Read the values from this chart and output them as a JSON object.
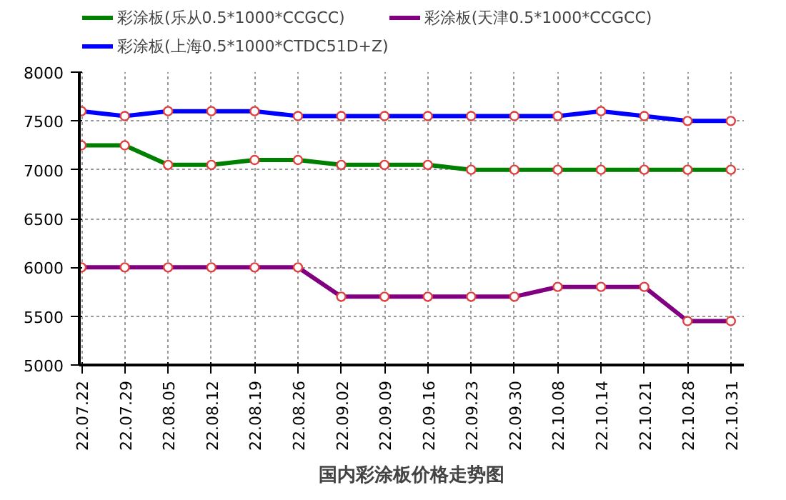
{
  "chart_data": {
    "type": "line",
    "title": "国内彩涂板价格走势图",
    "categories": [
      "22.07.22",
      "22.07.29",
      "22.08.05",
      "22.08.12",
      "22.08.19",
      "22.08.26",
      "22.09.02",
      "22.09.09",
      "22.09.16",
      "22.09.23",
      "22.09.30",
      "22.10.08",
      "22.10.14",
      "22.10.21",
      "22.10.28",
      "22.10.31"
    ],
    "series": [
      {
        "name": "彩涂板(乐从0.5*1000*CCGCC)",
        "color": "#008000",
        "values": [
          7250,
          7250,
          7050,
          7050,
          7100,
          7100,
          7050,
          7050,
          7050,
          7000,
          7000,
          7000,
          7000,
          7000,
          7000,
          7000
        ]
      },
      {
        "name": "彩涂板(上海0.5*1000*CTDC51D+Z)",
        "color": "#0000ff",
        "values": [
          7600,
          7550,
          7600,
          7600,
          7600,
          7550,
          7550,
          7550,
          7550,
          7550,
          7550,
          7550,
          7600,
          7550,
          7500,
          7500
        ]
      },
      {
        "name": "彩涂板(天津0.5*1000*CCGCC)",
        "color": "#800080",
        "values": [
          6000,
          6000,
          6000,
          6000,
          6000,
          6000,
          5700,
          5700,
          5700,
          5700,
          5700,
          5800,
          5800,
          5800,
          5450,
          5450
        ]
      }
    ],
    "ylim": [
      5000,
      8000
    ],
    "yticks": [
      5000,
      5500,
      6000,
      6500,
      7000,
      7500,
      8000
    ],
    "grid": true,
    "legend": "top",
    "marker": "circle",
    "line_style": "solid"
  }
}
